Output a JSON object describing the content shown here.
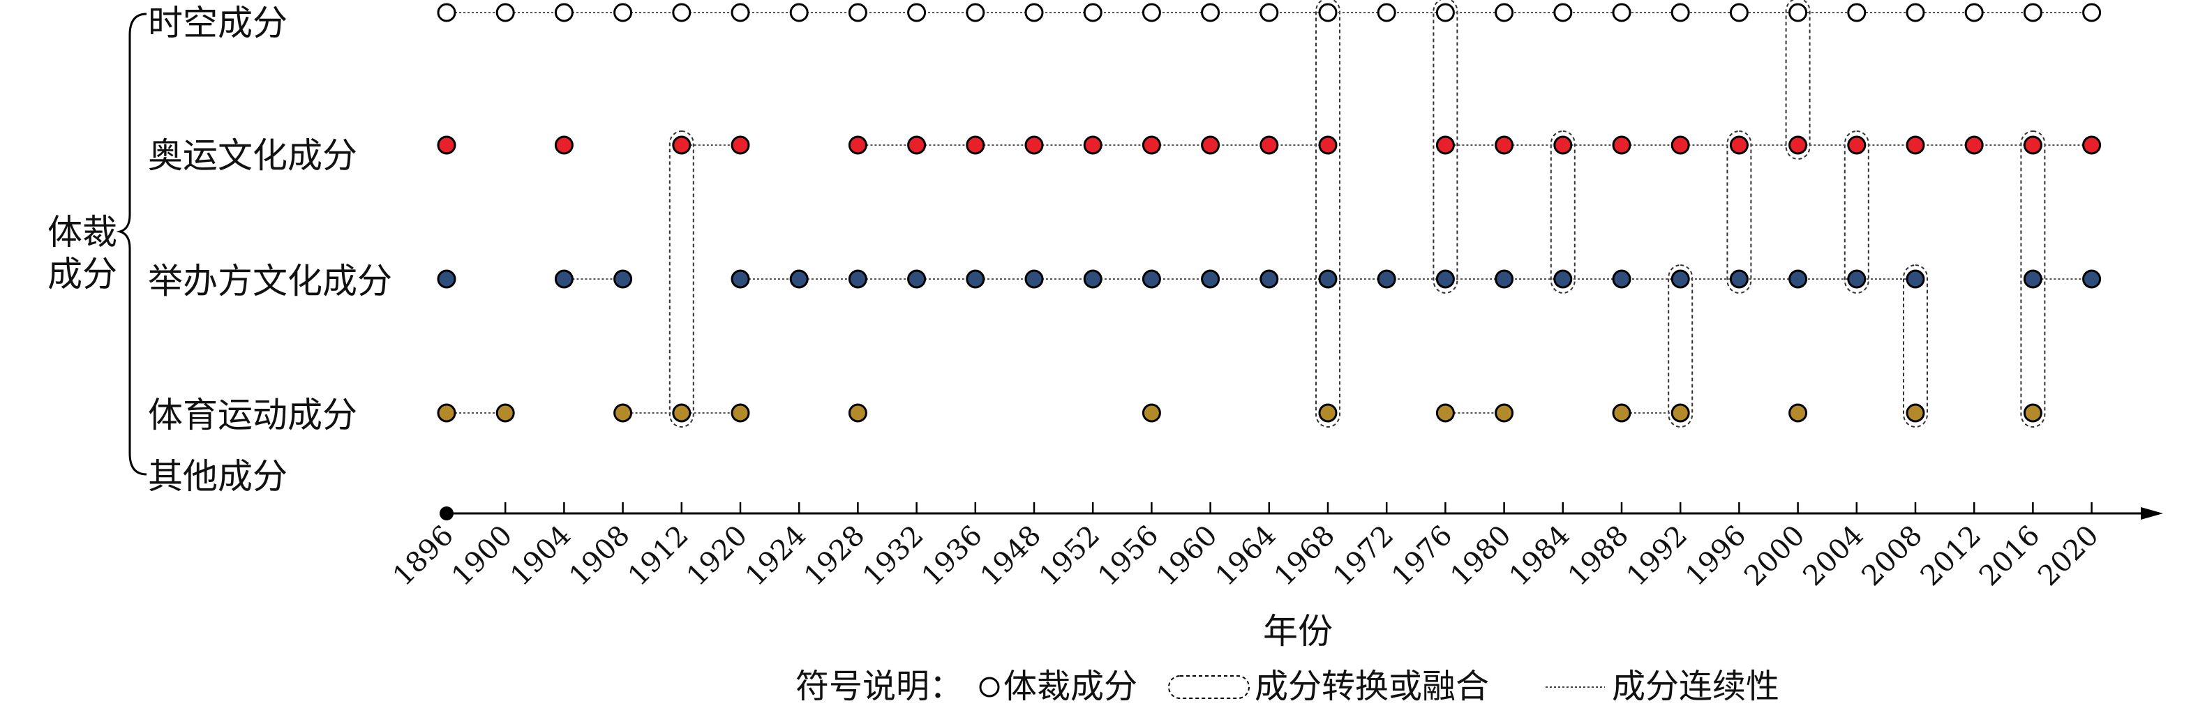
{
  "chart_data": {
    "type": "scatter",
    "group_label": "体裁\n成分",
    "xlabel": "年份",
    "x": [
      "1896",
      "1900",
      "1904",
      "1908",
      "1912",
      "1920",
      "1924",
      "1928",
      "1932",
      "1936",
      "1948",
      "1952",
      "1956",
      "1960",
      "1964",
      "1968",
      "1972",
      "1976",
      "1980",
      "1984",
      "1988",
      "1992",
      "1996",
      "2000",
      "2004",
      "2008",
      "2012",
      "2016",
      "2020"
    ],
    "categories": [
      "时空成分",
      "奥运文化成分",
      "举办方文化成分",
      "体育运动成分",
      "其他成分"
    ],
    "series": [
      {
        "name": "时空成分",
        "color": "#ffffff",
        "years": [
          "1896",
          "1900",
          "1904",
          "1908",
          "1912",
          "1920",
          "1924",
          "1928",
          "1932",
          "1936",
          "1948",
          "1952",
          "1956",
          "1960",
          "1964",
          "1968",
          "1972",
          "1976",
          "1980",
          "1984",
          "1988",
          "1992",
          "1996",
          "2000",
          "2004",
          "2008",
          "2012",
          "2016",
          "2020"
        ],
        "continuity": [
          [
            "1896",
            "2020"
          ]
        ]
      },
      {
        "name": "奥运文化成分",
        "color": "#e8202a",
        "years": [
          "1896",
          "1904",
          "1912",
          "1920",
          "1928",
          "1932",
          "1936",
          "1948",
          "1952",
          "1956",
          "1960",
          "1964",
          "1968",
          "1976",
          "1980",
          "1984",
          "1988",
          "1992",
          "1996",
          "2000",
          "2004",
          "2008",
          "2012",
          "2016",
          "2020"
        ],
        "continuity": [
          [
            "1912",
            "1920"
          ],
          [
            "1928",
            "1968"
          ],
          [
            "1976",
            "2020"
          ]
        ]
      },
      {
        "name": "举办方文化成分",
        "color": "#2e4d7b",
        "years": [
          "1896",
          "1904",
          "1908",
          "1920",
          "1924",
          "1928",
          "1932",
          "1936",
          "1948",
          "1952",
          "1956",
          "1960",
          "1964",
          "1968",
          "1972",
          "1976",
          "1980",
          "1984",
          "1988",
          "1992",
          "1996",
          "2000",
          "2004",
          "2008",
          "2016",
          "2020"
        ],
        "continuity": [
          [
            "1904",
            "1908"
          ],
          [
            "1920",
            "2008"
          ],
          [
            "2016",
            "2020"
          ]
        ]
      },
      {
        "name": "体育运动成分",
        "color": "#b38a2a",
        "years": [
          "1896",
          "1900",
          "1908",
          "1912",
          "1920",
          "1928",
          "1956",
          "1968",
          "1976",
          "1980",
          "1988",
          "1992",
          "2000",
          "2008",
          "2016"
        ],
        "continuity": [
          [
            "1896",
            "1900"
          ],
          [
            "1908",
            "1920"
          ],
          [
            "1976",
            "1980"
          ],
          [
            "1988",
            "1992"
          ]
        ]
      },
      {
        "name": "其他成分",
        "color": "#777777",
        "years": [],
        "continuity": []
      }
    ],
    "fusions": [
      {
        "year": "1912",
        "from": "奥运文化成分",
        "to": "体育运动成分"
      },
      {
        "year": "1968",
        "from": "时空成分",
        "to": "体育运动成分"
      },
      {
        "year": "1976",
        "from": "时空成分",
        "to": "举办方文化成分"
      },
      {
        "year": "1984",
        "from": "奥运文化成分",
        "to": "举办方文化成分"
      },
      {
        "year": "1992",
        "from": "举办方文化成分",
        "to": "体育运动成分"
      },
      {
        "year": "1996",
        "from": "奥运文化成分",
        "to": "举办方文化成分"
      },
      {
        "year": "2000",
        "from": "时空成分",
        "to": "奥运文化成分"
      },
      {
        "year": "2004",
        "from": "奥运文化成分",
        "to": "举办方文化成分"
      },
      {
        "year": "2008",
        "from": "举办方文化成分",
        "to": "体育运动成分"
      },
      {
        "year": "2016",
        "from": "奥运文化成分",
        "to": "体育运动成分"
      }
    ],
    "legend": {
      "title": "符号说明：",
      "circle_label": "体裁成分",
      "fusion_label": "成分转换或融合",
      "continuity_label": "成分连续性"
    },
    "grid": false
  }
}
